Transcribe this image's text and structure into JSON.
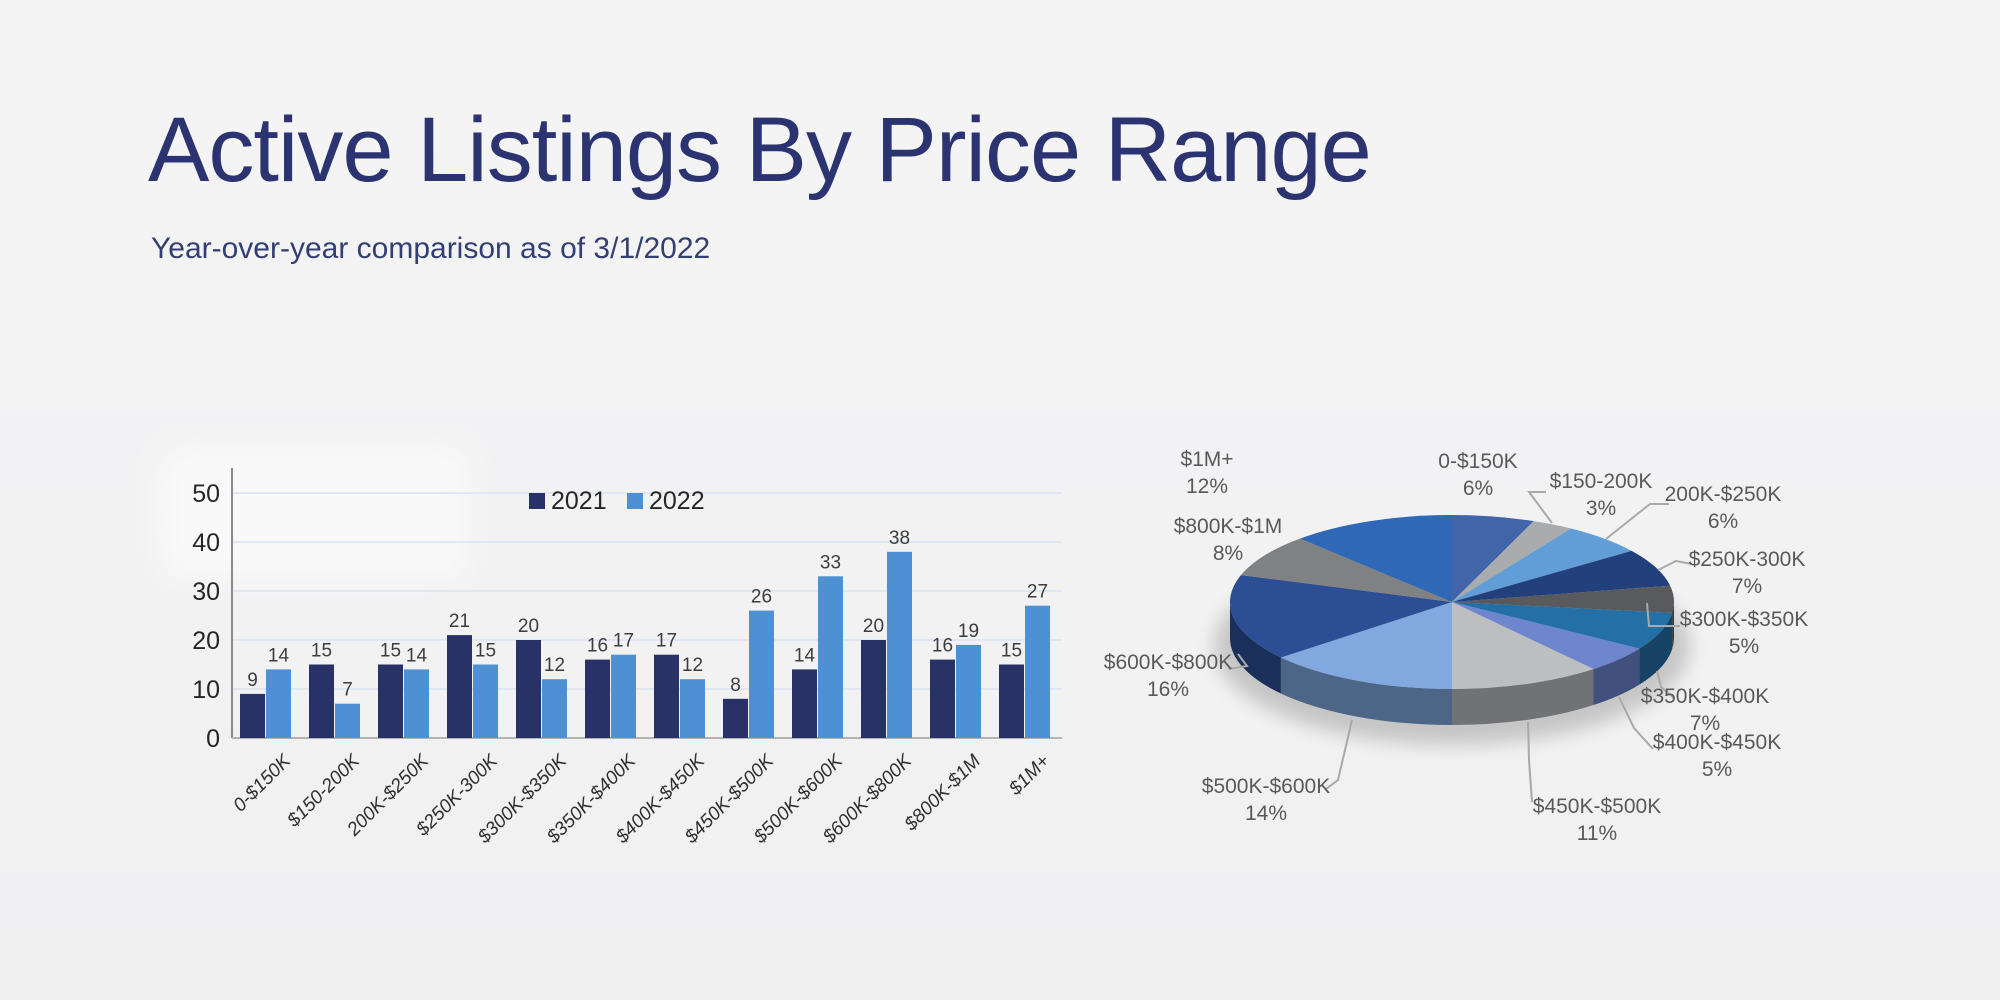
{
  "slide": {
    "title": "Active Listings By Price Range",
    "subtitle": "Year-over-year comparison as of 3/1/2022"
  },
  "chart_data": [
    {
      "type": "bar",
      "categories": [
        "0-$150K",
        "$150-200K",
        "200K-$250K",
        "$250K-300K",
        "$300K-$350K",
        "$350K-$400K",
        "$400K-$450K",
        "$450K-$500K",
        "$500K-$600K",
        "$600K-$800K",
        "$800K-$1M",
        "$1M+"
      ],
      "series": [
        {
          "name": "2021",
          "color": "#293267",
          "values": [
            9,
            15,
            15,
            21,
            20,
            16,
            17,
            8,
            14,
            20,
            16,
            15
          ]
        },
        {
          "name": "2022",
          "color": "#4d90d3",
          "values": [
            14,
            7,
            14,
            15,
            12,
            17,
            12,
            26,
            33,
            38,
            19,
            27
          ]
        }
      ],
      "ylim": [
        0,
        50
      ],
      "yticks": [
        0,
        10,
        20,
        30,
        40,
        50
      ],
      "grid": true,
      "legend_position": "top-center",
      "data_labels": true,
      "x_tick_style": "rotated-italic"
    },
    {
      "type": "pie",
      "effect": "3d",
      "labels": [
        "0-$150K",
        "$150-200K",
        "200K-$250K",
        "$250K-300K",
        "$300K-$350K",
        "$350K-$400K",
        "$400K-$450K",
        "$450K-$500K",
        "$500K-$600K",
        "$600K-$800K",
        "$800K-$1M",
        "$1M+"
      ],
      "values_pct": [
        6,
        3,
        6,
        7,
        5,
        7,
        5,
        11,
        14,
        16,
        8,
        12
      ],
      "colors": [
        "#4165a8",
        "#a9abad",
        "#619ed7",
        "#21407c",
        "#585a5e",
        "#2470a6",
        "#6d86ce",
        "#bdbec2",
        "#81a9df",
        "#2b4e95",
        "#7f8183",
        "#2e68b6"
      ],
      "label_format": "label + percent"
    }
  ]
}
